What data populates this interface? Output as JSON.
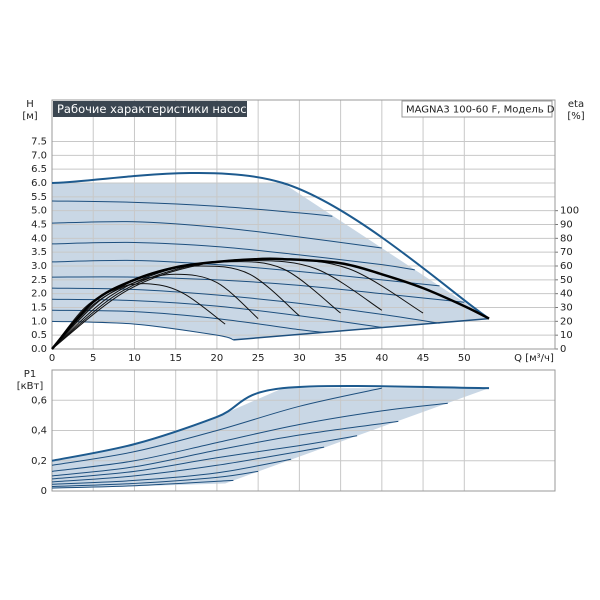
{
  "chart_data": [
    {
      "type": "line",
      "title": "Рабочие характеристики насоса",
      "model": "MAGNA3 100-60 F, Модель D",
      "ylabel": "H",
      "yunit": "[м]",
      "y2label": "eta",
      "y2unit": "[%]",
      "xlabel": "Q [м³/ч]",
      "xlim": [
        0,
        61
      ],
      "xticks": [
        0,
        5,
        10,
        15,
        20,
        25,
        30,
        35,
        40,
        45,
        50
      ],
      "ylim": [
        0,
        9
      ],
      "yticks": [
        {
          "value": 0,
          "label": "0.0"
        },
        {
          "value": 0.5,
          "label": "0.5"
        },
        {
          "value": 1,
          "label": "1.0"
        },
        {
          "value": 1.5,
          "label": "1.5"
        },
        {
          "value": 2,
          "label": "2.0"
        },
        {
          "value": 2.5,
          "label": "2.5"
        },
        {
          "value": 3,
          "label": "3.0"
        },
        {
          "value": 3.5,
          "label": "3.5"
        },
        {
          "value": 4,
          "label": "4.0"
        },
        {
          "value": 4.5,
          "label": "4.5"
        },
        {
          "value": 5,
          "label": "5.0"
        },
        {
          "value": 5.5,
          "label": "5.5"
        },
        {
          "value": 6,
          "label": "6.0"
        },
        {
          "value": 6.5,
          "label": "6.5"
        },
        {
          "value": 7,
          "label": "7.0"
        },
        {
          "value": 7.5,
          "label": "7.5"
        }
      ],
      "y2lim": [
        0,
        180
      ],
      "y2ticks": [
        0,
        10,
        20,
        30,
        40,
        50,
        60,
        70,
        80,
        90,
        100
      ],
      "grid": true,
      "area": {
        "color": "#c9d7e5",
        "x": [
          0,
          28,
          53,
          22,
          20,
          10,
          0
        ],
        "values": [
          6,
          6,
          1.1,
          0.33,
          0.5,
          0.9,
          1.0
        ]
      },
      "series": [
        {
          "color": "#1d5a8e",
          "width": 2,
          "x": [
            0,
            28,
            53
          ],
          "values": [
            6,
            6,
            1.1
          ]
        },
        {
          "color": "#1d4f7e",
          "x": [
            0,
            10,
            20,
            30,
            34
          ],
          "values": [
            5.35,
            5.3,
            5.16,
            4.92,
            4.8
          ]
        },
        {
          "color": "#1d4f7e",
          "x": [
            0,
            10,
            20,
            30,
            40
          ],
          "values": [
            4.55,
            4.6,
            4.4,
            4.05,
            3.65
          ]
        },
        {
          "color": "#1d4f7e",
          "x": [
            0,
            10,
            20,
            30,
            40,
            44
          ],
          "values": [
            3.8,
            3.85,
            3.7,
            3.4,
            3.05,
            2.86
          ]
        },
        {
          "color": "#1d4f7e",
          "x": [
            0,
            10,
            20,
            30,
            40,
            47
          ],
          "values": [
            3.15,
            3.2,
            3.05,
            2.8,
            2.5,
            2.28
          ]
        },
        {
          "color": "#1d4f7e",
          "x": [
            0,
            10,
            20,
            30,
            40,
            50
          ],
          "values": [
            2.6,
            2.6,
            2.5,
            2.3,
            2.0,
            1.69
          ]
        },
        {
          "color": "#1d4f7e",
          "x": [
            0,
            10,
            20,
            30,
            40,
            47
          ],
          "values": [
            2.2,
            2.15,
            1.95,
            1.65,
            1.25,
            0.93
          ]
        },
        {
          "color": "#1d4f7e",
          "x": [
            0,
            10,
            20,
            30,
            40
          ],
          "values": [
            1.8,
            1.75,
            1.55,
            1.2,
            0.78
          ]
        },
        {
          "color": "#1d4f7e",
          "x": [
            0,
            10,
            20,
            30,
            33
          ],
          "values": [
            1.4,
            1.35,
            1.1,
            0.7,
            0.6
          ]
        },
        {
          "color": "#1d4f7e",
          "x": [
            0,
            10,
            20,
            22
          ],
          "values": [
            1.0,
            0.9,
            0.5,
            0.33
          ]
        },
        {
          "color": "#1d4f7e",
          "width": 1.5,
          "x": [
            22,
            53
          ],
          "values": [
            0.33,
            1.1
          ]
        },
        {
          "color": "#111111",
          "axis": "y2",
          "x": [
            0,
            4,
            8,
            12,
            16,
            21
          ],
          "values": [
            0,
            30,
            44,
            47,
            40,
            18
          ]
        },
        {
          "color": "#111111",
          "axis": "y2",
          "x": [
            0,
            5,
            10,
            15,
            20,
            25
          ],
          "values": [
            0,
            32,
            48,
            54,
            48,
            22
          ]
        },
        {
          "color": "#111111",
          "axis": "y2",
          "x": [
            0,
            6,
            12,
            18,
            24,
            30
          ],
          "values": [
            0,
            36,
            54,
            60,
            54,
            24
          ]
        },
        {
          "color": "#111111",
          "axis": "y2",
          "x": [
            0,
            7,
            14,
            21,
            28,
            35
          ],
          "values": [
            0,
            38,
            57,
            63,
            58,
            26
          ]
        },
        {
          "color": "#111111",
          "axis": "y2",
          "x": [
            0,
            8,
            16,
            24,
            32,
            40
          ],
          "values": [
            0,
            40,
            59,
            64,
            58,
            28
          ]
        },
        {
          "color": "#111111",
          "axis": "y2",
          "x": [
            0,
            9,
            18,
            27,
            36,
            45
          ],
          "values": [
            0,
            42,
            61,
            65,
            58,
            26
          ]
        },
        {
          "color": "#000000",
          "width": 2.5,
          "axis": "y2",
          "x": [
            0,
            5,
            10,
            15,
            20,
            25,
            28,
            35,
            40,
            45,
            50,
            53
          ],
          "values": [
            0,
            34,
            50,
            59,
            63,
            65,
            65,
            62,
            54,
            44,
            31,
            22
          ]
        }
      ]
    },
    {
      "type": "line",
      "ylabel": "P1",
      "yunit": "[кВт]",
      "xlim": [
        0,
        61
      ],
      "xticks": [
        0,
        5,
        10,
        15,
        20,
        25,
        30,
        35,
        40,
        45,
        50
      ],
      "xtick_labels": false,
      "ylim": [
        0,
        0.8
      ],
      "yticks": [
        0,
        {
          "value": 0.2,
          "label": "0,2"
        },
        {
          "value": 0.4,
          "label": "0,4"
        },
        {
          "value": 0.6,
          "label": "0,6"
        }
      ],
      "grid": true,
      "area": {
        "color": "#c9d7e5",
        "x": [
          0,
          10,
          20,
          28,
          53,
          21,
          0
        ],
        "values": [
          0.2,
          0.31,
          0.49,
          0.68,
          0.68,
          0.05,
          0.015
        ]
      },
      "series": [
        {
          "color": "#1d5a8e",
          "width": 2,
          "x": [
            0,
            10,
            20,
            28,
            53
          ],
          "values": [
            0.2,
            0.31,
            0.49,
            0.68,
            0.68
          ]
        },
        {
          "color": "#1d4f7e",
          "x": [
            0,
            10,
            20,
            30,
            40
          ],
          "values": [
            0.17,
            0.26,
            0.4,
            0.56,
            0.68
          ]
        },
        {
          "color": "#1d4f7e",
          "x": [
            0,
            10,
            20,
            30,
            40,
            48
          ],
          "values": [
            0.13,
            0.2,
            0.32,
            0.44,
            0.53,
            0.58
          ]
        },
        {
          "color": "#1d4f7e",
          "x": [
            0,
            10,
            20,
            30,
            42
          ],
          "values": [
            0.1,
            0.16,
            0.27,
            0.37,
            0.46
          ]
        },
        {
          "color": "#1d4f7e",
          "x": [
            0,
            10,
            20,
            30,
            37
          ],
          "values": [
            0.08,
            0.13,
            0.22,
            0.3,
            0.365
          ]
        },
        {
          "color": "#1d4f7e",
          "x": [
            0,
            10,
            20,
            33
          ],
          "values": [
            0.06,
            0.1,
            0.17,
            0.29
          ]
        },
        {
          "color": "#1d4f7e",
          "x": [
            0,
            10,
            20,
            29
          ],
          "values": [
            0.045,
            0.07,
            0.12,
            0.21
          ]
        },
        {
          "color": "#1d4f7e",
          "x": [
            0,
            10,
            20,
            25
          ],
          "values": [
            0.03,
            0.05,
            0.09,
            0.13
          ]
        },
        {
          "color": "#1d4f7e",
          "x": [
            0,
            10,
            22
          ],
          "values": [
            0.02,
            0.035,
            0.07
          ]
        }
      ]
    }
  ]
}
